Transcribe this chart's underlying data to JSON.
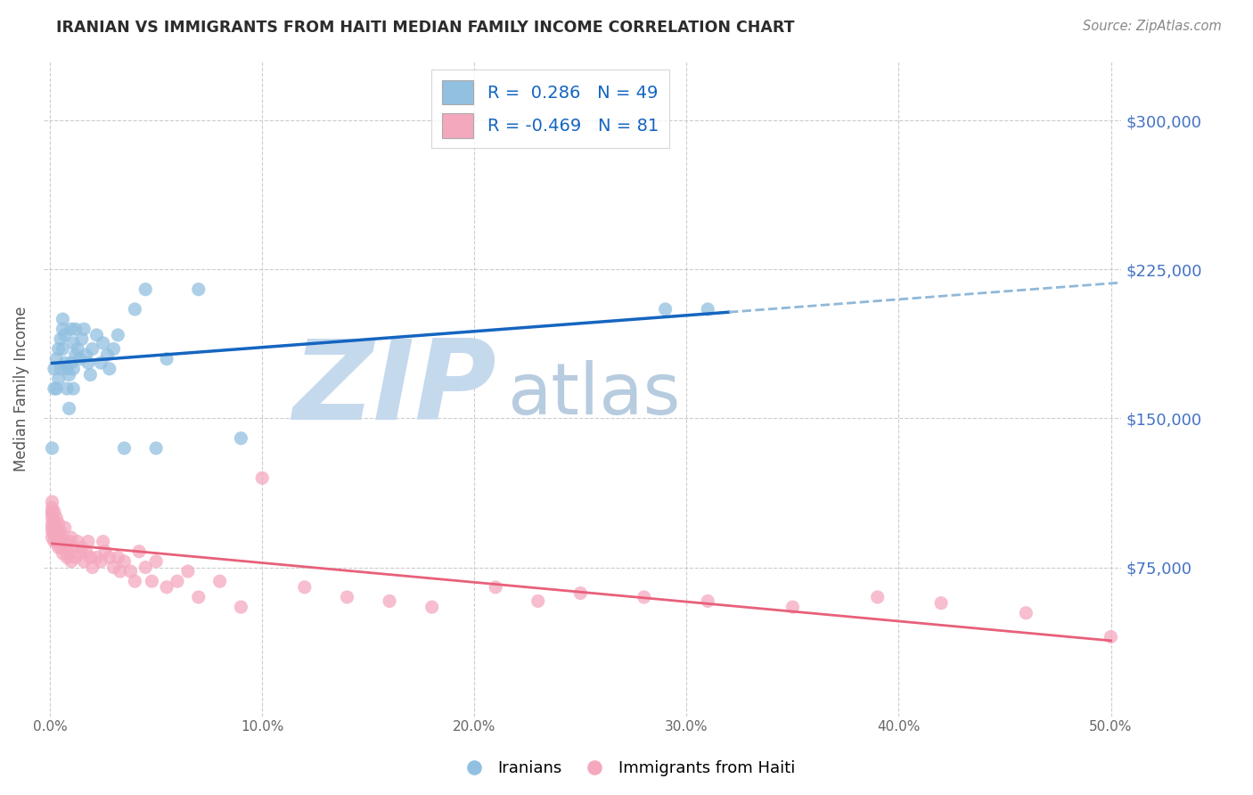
{
  "title": "IRANIAN VS IMMIGRANTS FROM HAITI MEDIAN FAMILY INCOME CORRELATION CHART",
  "source": "Source: ZipAtlas.com",
  "ylabel": "Median Family Income",
  "y_tick_labels": [
    "$75,000",
    "$150,000",
    "$225,000",
    "$300,000"
  ],
  "y_tick_values": [
    75000,
    150000,
    225000,
    300000
  ],
  "y_min": 0,
  "y_max": 330000,
  "x_min": -0.003,
  "x_max": 0.505,
  "x_ticks": [
    0.0,
    0.1,
    0.2,
    0.3,
    0.4,
    0.5
  ],
  "x_tick_labels": [
    "0.0%",
    "10.0%",
    "20.0%",
    "30.0%",
    "40.0%",
    "50.0%"
  ],
  "blue_color": "#92c0e0",
  "pink_color": "#f4a8be",
  "line_blue": "#1565c0",
  "line_pink": "#e8607a",
  "line_dashed_color": "#90b8d8",
  "watermark_zip": "ZIP",
  "watermark_atlas": "atlas",
  "watermark_color_zip": "#c5d9ed",
  "watermark_color_atlas": "#b8cce0",
  "title_color": "#2c2c2c",
  "right_label_color": "#4472c4",
  "tick_color": "#666666",
  "background_color": "#ffffff",
  "grid_color": "#cccccc",
  "legend_text_color": "#1565c0",
  "legend_label_blue": "R =  0.286   N = 49",
  "legend_label_pink": "R = -0.469   N = 81",
  "legend_label_iranians": "Iranians",
  "legend_label_haiti": "Immigrants from Haiti",
  "blue_line_solid_end": 0.32,
  "iranians_x": [
    0.001,
    0.002,
    0.002,
    0.003,
    0.003,
    0.004,
    0.004,
    0.005,
    0.005,
    0.006,
    0.006,
    0.006,
    0.007,
    0.007,
    0.008,
    0.008,
    0.009,
    0.009,
    0.01,
    0.01,
    0.011,
    0.011,
    0.011,
    0.012,
    0.012,
    0.013,
    0.014,
    0.015,
    0.016,
    0.017,
    0.018,
    0.019,
    0.02,
    0.022,
    0.024,
    0.025,
    0.027,
    0.028,
    0.03,
    0.032,
    0.035,
    0.04,
    0.045,
    0.05,
    0.055,
    0.07,
    0.09,
    0.29,
    0.31
  ],
  "iranians_y": [
    135000,
    165000,
    175000,
    180000,
    165000,
    185000,
    170000,
    175000,
    190000,
    195000,
    185000,
    200000,
    178000,
    192000,
    175000,
    165000,
    155000,
    172000,
    178000,
    195000,
    188000,
    175000,
    165000,
    195000,
    182000,
    185000,
    180000,
    190000,
    195000,
    182000,
    178000,
    172000,
    185000,
    192000,
    178000,
    188000,
    182000,
    175000,
    185000,
    192000,
    135000,
    205000,
    215000,
    135000,
    180000,
    215000,
    140000,
    205000,
    205000
  ],
  "haiti_x": [
    0.001,
    0.001,
    0.001,
    0.001,
    0.001,
    0.001,
    0.001,
    0.001,
    0.001,
    0.002,
    0.002,
    0.002,
    0.002,
    0.002,
    0.003,
    0.003,
    0.003,
    0.003,
    0.004,
    0.004,
    0.004,
    0.004,
    0.005,
    0.005,
    0.005,
    0.006,
    0.006,
    0.007,
    0.007,
    0.008,
    0.008,
    0.009,
    0.009,
    0.01,
    0.01,
    0.011,
    0.012,
    0.013,
    0.014,
    0.015,
    0.016,
    0.017,
    0.018,
    0.019,
    0.02,
    0.022,
    0.024,
    0.025,
    0.026,
    0.028,
    0.03,
    0.032,
    0.033,
    0.035,
    0.038,
    0.04,
    0.042,
    0.045,
    0.048,
    0.05,
    0.055,
    0.06,
    0.065,
    0.07,
    0.08,
    0.09,
    0.1,
    0.12,
    0.14,
    0.16,
    0.18,
    0.21,
    0.23,
    0.25,
    0.28,
    0.31,
    0.35,
    0.39,
    0.42,
    0.46,
    0.5
  ],
  "haiti_y": [
    103000,
    105000,
    100000,
    97000,
    95000,
    102000,
    108000,
    93000,
    90000,
    98000,
    95000,
    103000,
    88000,
    92000,
    93000,
    88000,
    95000,
    100000,
    90000,
    85000,
    92000,
    97000,
    88000,
    85000,
    93000,
    88000,
    82000,
    88000,
    95000,
    85000,
    80000,
    88000,
    82000,
    78000,
    90000,
    85000,
    80000,
    88000,
    82000,
    85000,
    78000,
    83000,
    88000,
    80000,
    75000,
    80000,
    78000,
    88000,
    83000,
    80000,
    75000,
    80000,
    73000,
    78000,
    73000,
    68000,
    83000,
    75000,
    68000,
    78000,
    65000,
    68000,
    73000,
    60000,
    68000,
    55000,
    120000,
    65000,
    60000,
    58000,
    55000,
    65000,
    58000,
    62000,
    60000,
    58000,
    55000,
    60000,
    57000,
    52000,
    40000
  ]
}
